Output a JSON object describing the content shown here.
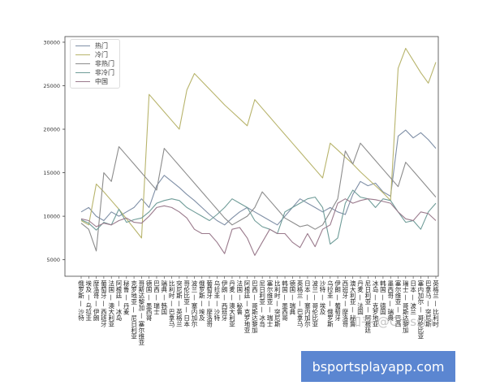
{
  "chart_data": {
    "type": "line",
    "title": "",
    "xlabel": "",
    "ylabel": "",
    "ylim": [
      3100,
      30650
    ],
    "yticks": [
      5000,
      10000,
      15000,
      20000,
      25000,
      30000
    ],
    "grid": false,
    "legend_position": "top-left",
    "categories": [
      "俄罗斯—沙特",
      "埃及—乌拉圭",
      "摩洛哥—伊朗",
      "葡萄牙—西班牙",
      "法国—澳大利亚",
      "阿根廷—冰岛",
      "秘鲁—丹麦",
      "克罗地亚—尼日利亚",
      "哥斯达黎加—塞尔维亚",
      "德国—墨西哥",
      "巴西—瑞士",
      "瑞典—韩国",
      "比利时—巴拿马",
      "突尼斯—英格兰",
      "哥伦比亚—日本",
      "波兰—塞内加尔",
      "俄罗斯—埃及",
      "葡萄牙—摩洛哥",
      "乌拉圭—沙特",
      "伊朗—西班牙",
      "丹麦—澳大利亚",
      "法国—秘鲁",
      "阿根廷—克罗地亚",
      "巴西—哥斯达黎加",
      "尼日利亚—冰岛",
      "塞尔维亚—瑞士",
      "比利时—突尼斯",
      "韩国—墨西哥",
      "德国—瑞典",
      "英格兰—巴拿马",
      "日本—塞内加尔",
      "波兰—哥伦比亚",
      "沙特—埃及",
      "乌拉圭—俄罗斯",
      "伊朗—葡萄牙",
      "西班牙—摩洛哥",
      "澳大利亚—秘鲁",
      "丹麦—法国",
      "尼日利亚—阿根廷",
      "冰岛—克罗地亚",
      "韩国—德国",
      "墨西哥—瑞典",
      "塞尔维亚—巴西",
      "瑞士—哥斯达黎加",
      "日本—波兰",
      "塞内加尔—哥伦比亚",
      "巴拿马—突尼斯",
      "英格兰—比利时"
    ],
    "series": [
      {
        "name": "热门",
        "color": "#7f8fa6",
        "values": [
          10500,
          11000,
          10000,
          9500,
          10500,
          10000,
          10500,
          11000,
          12000,
          11000,
          13500,
          14700,
          14000,
          13300,
          12500,
          11800,
          11000,
          10200,
          9500,
          9000,
          9800,
          10500,
          11000,
          10500,
          10000,
          9500,
          9000,
          10000,
          11000,
          12000,
          11500,
          11000,
          10500,
          11000,
          10500,
          10200,
          12500,
          14000,
          13500,
          13800,
          12800,
          12300,
          19200,
          19900,
          19000,
          19600,
          18800,
          17800
        ]
      },
      {
        "name": "冷门",
        "color": "#b8b46c",
        "values": [
          9500,
          9000,
          13700,
          12800,
          11800,
          10800,
          9700,
          8600,
          7500,
          24000,
          23000,
          22000,
          21000,
          20000,
          24500,
          26400,
          25500,
          24600,
          23700,
          22800,
          22000,
          21200,
          20400,
          23400,
          22400,
          21400,
          20400,
          19400,
          18400,
          17400,
          16400,
          15400,
          14400,
          18400,
          17600,
          16800,
          16000,
          15100,
          14300,
          13500,
          12700,
          11800,
          27000,
          29300,
          27900,
          26500,
          25300,
          27700
        ]
      },
      {
        "name": "非热门",
        "color": "#8c8c8c",
        "values": [
          9200,
          8500,
          6000,
          15000,
          14000,
          18000,
          17000,
          16000,
          15000,
          14000,
          13000,
          17800,
          16800,
          15800,
          14800,
          13800,
          12800,
          11800,
          10800,
          9800,
          9000,
          9500,
          10000,
          11000,
          12800,
          11800,
          10800,
          9800,
          9300,
          8800,
          9000,
          8500,
          9000,
          10500,
          12000,
          17500,
          16000,
          18400,
          17400,
          16400,
          15400,
          14400,
          13400,
          16200,
          15200,
          14200,
          13200,
          12200
        ]
      },
      {
        "name": "非冷门",
        "color": "#6f9c98",
        "values": [
          9600,
          9200,
          8400,
          9300,
          9000,
          10800,
          9300,
          9600,
          9800,
          10500,
          11500,
          11800,
          12000,
          11800,
          11000,
          10500,
          10000,
          9500,
          10200,
          11000,
          12000,
          11500,
          11000,
          9500,
          8800,
          8500,
          8000,
          10500,
          11000,
          11500,
          12000,
          12200,
          11000,
          6800,
          7500,
          11500,
          13000,
          12200,
          12000,
          11000,
          12000,
          11800,
          10500,
          9300,
          9500,
          8500,
          10500,
          11500
        ]
      },
      {
        "name": "中国",
        "color": "#9a7a8c",
        "values": [
          9700,
          9500,
          8800,
          9200,
          9000,
          9500,
          9800,
          9300,
          9200,
          10000,
          11000,
          11200,
          11000,
          10500,
          9800,
          8500,
          8000,
          8000,
          7000,
          5700,
          8500,
          8700,
          7500,
          5500,
          7000,
          8500,
          8000,
          8000,
          7000,
          6400,
          8000,
          6500,
          8500,
          9000,
          11500,
          12000,
          11500,
          11800,
          12000,
          11900,
          11700,
          11500,
          10500,
          9700,
          9500,
          10500,
          10300,
          9500
        ]
      }
    ]
  },
  "watermark": {
    "zhihu": "知乎 @Crossin",
    "promo": "bsportsplayapp.com"
  }
}
